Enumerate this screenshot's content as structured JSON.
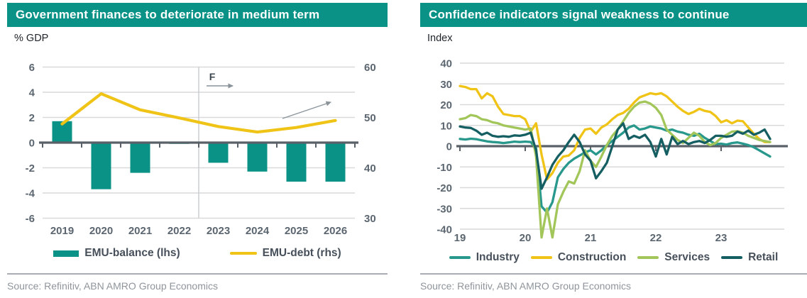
{
  "colors": {
    "banner": "#0a9286",
    "grid": "#d9d9d9",
    "axis": "#596067",
    "axis_label": "#5b6670",
    "forecast_line": "#c8ccd0",
    "annotation": "#8a939a",
    "legend_text": "#47505a",
    "source_text": "#8f959b"
  },
  "chart_data": [
    {
      "panel": "left",
      "type": "combo-bar-line",
      "title": "Government finances to deteriorate in medium term",
      "unit_label": "% GDP",
      "source": "Source: Refinitiv, ABN AMRO Group Economics",
      "categories": [
        "2019",
        "2020",
        "2021",
        "2022",
        "2023",
        "2024",
        "2025",
        "2026"
      ],
      "left_axis": {
        "min": -6,
        "max": 6,
        "ticks": [
          6,
          4,
          2,
          0,
          -2,
          -4,
          -6
        ]
      },
      "right_axis": {
        "min": 30,
        "max": 60,
        "ticks": [
          60,
          50,
          40,
          30
        ]
      },
      "forecast": {
        "label": "F",
        "starts_after_category": "2022"
      },
      "series": [
        {
          "name": "EMU-balance (lhs)",
          "type": "bar",
          "axis": "left",
          "color": "#0a9286",
          "values": [
            1.7,
            -3.7,
            -2.4,
            -0.1,
            -1.6,
            -2.3,
            -3.1,
            -3.1
          ]
        },
        {
          "name": "EMU-debt (rhs)",
          "type": "line",
          "axis": "right",
          "color": "#f0c317",
          "values": [
            48.7,
            54.7,
            51.5,
            49.9,
            48.2,
            47.1,
            48.0,
            49.4
          ]
        }
      ]
    },
    {
      "panel": "right",
      "type": "line",
      "title": "Confidence indicators signal weakness to continue",
      "unit_label": "Index",
      "source": "Source: Refinitiv, ABN AMRO Group Economics",
      "x_start": "2019-01",
      "x_end": "2023-10",
      "x_tick_labels": [
        "19",
        "20",
        "21",
        "22",
        "23"
      ],
      "y_axis": {
        "min": -40,
        "max": 40,
        "step": 10,
        "ticks": [
          40,
          30,
          20,
          10,
          0,
          -10,
          -20,
          -30,
          -40
        ]
      },
      "series": [
        {
          "name": "Industry",
          "color": "#28988c",
          "values": [
            3.5,
            3.2,
            3.6,
            3.4,
            2.8,
            2.3,
            2.0,
            1.8,
            1.5,
            1.8,
            2.2,
            2.0,
            2.2,
            2.0,
            -1.0,
            -29.0,
            -32.0,
            -27.0,
            -15.0,
            -11.0,
            -8.0,
            -6.0,
            -4.5,
            -3.0,
            -2.0,
            -4.0,
            -2.0,
            0.5,
            2.5,
            4.5,
            6.5,
            9.0,
            10.0,
            8.0,
            8.5,
            9.5,
            9.0,
            8.5,
            7.5,
            8.0,
            7.0,
            6.5,
            5.5,
            5.0,
            6.0,
            4.0,
            2.5,
            1.0,
            1.2,
            0.8,
            1.5,
            1.8,
            1.2,
            0.5,
            -0.5,
            -2.0,
            -3.5,
            -5.0
          ]
        },
        {
          "name": "Construction",
          "color": "#f0c317",
          "values": [
            29.0,
            28.5,
            27.5,
            27.5,
            23.0,
            25.5,
            24.0,
            19.0,
            15.5,
            15.0,
            14.5,
            14.5,
            13.0,
            7.0,
            11.0,
            -4.0,
            -16.0,
            -13.0,
            -8.0,
            -5.0,
            -4.5,
            -2.0,
            4.0,
            8.0,
            8.5,
            6.0,
            9.0,
            10.5,
            13.0,
            15.0,
            16.0,
            18.0,
            21.0,
            23.5,
            24.5,
            25.5,
            25.0,
            25.5,
            24.0,
            21.5,
            19.0,
            17.0,
            15.5,
            16.5,
            18.0,
            17.0,
            16.5,
            14.5,
            11.5,
            12.5,
            11.0,
            12.3,
            12.0,
            9.0,
            6.0,
            3.5,
            2.0,
            2.0
          ]
        },
        {
          "name": "Services",
          "color": "#a2c65a",
          "values": [
            13.0,
            13.5,
            15.0,
            14.5,
            13.0,
            12.5,
            11.5,
            11.0,
            10.0,
            9.5,
            9.0,
            8.5,
            8.0,
            8.5,
            -5.0,
            -44.0,
            -30.0,
            -44.0,
            -28.0,
            -22.0,
            -17.0,
            -18.0,
            -12.0,
            -2.0,
            -7.0,
            -10.0,
            -5.0,
            0.5,
            5.0,
            8.0,
            12.0,
            16.0,
            19.0,
            21.0,
            21.5,
            20.5,
            18.5,
            15.0,
            8.0,
            5.5,
            3.0,
            1.5,
            4.0,
            6.5,
            5.0,
            2.0,
            0.5,
            1.5,
            4.0,
            5.5,
            7.0,
            7.2,
            6.5,
            5.0,
            4.0,
            3.0,
            2.5,
            2.0
          ]
        },
        {
          "name": "Retail",
          "color": "#155f63",
          "values": [
            9.5,
            9.0,
            8.8,
            7.5,
            5.5,
            6.5,
            5.0,
            4.5,
            4.8,
            4.5,
            5.2,
            5.0,
            5.5,
            6.5,
            -2.0,
            -20.5,
            -15.0,
            -9.0,
            -5.0,
            -2.0,
            2.0,
            5.5,
            2.0,
            -4.0,
            -7.0,
            -15.5,
            -12.0,
            -8.0,
            0.0,
            8.0,
            11.0,
            3.5,
            5.0,
            4.0,
            5.5,
            2.0,
            -5.0,
            3.5,
            -4.0,
            4.5,
            1.0,
            2.5,
            1.0,
            2.0,
            2.5,
            1.5,
            3.0,
            5.0,
            5.0,
            4.5,
            5.0,
            7.0,
            6.0,
            7.5,
            5.5,
            6.5,
            8.0,
            3.5
          ]
        }
      ]
    }
  ]
}
